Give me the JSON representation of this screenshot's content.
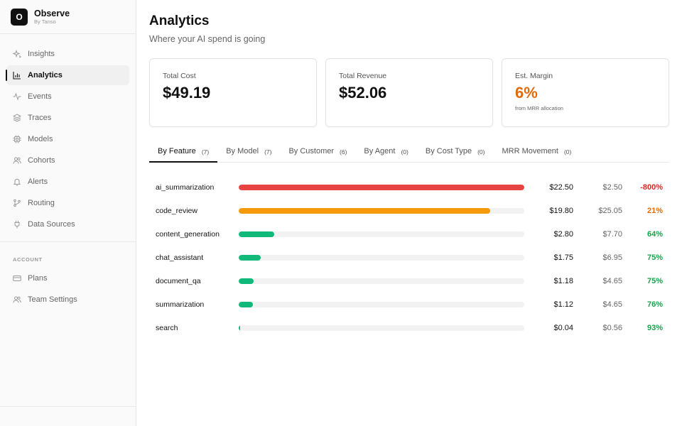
{
  "brand": {
    "logo_letter": "O",
    "name": "Observe",
    "sub": "By Tanso"
  },
  "nav": [
    {
      "label": "Insights",
      "icon": "sparkle-icon",
      "active": false
    },
    {
      "label": "Analytics",
      "icon": "bar-chart-icon",
      "active": true
    },
    {
      "label": "Events",
      "icon": "activity-icon",
      "active": false
    },
    {
      "label": "Traces",
      "icon": "layers-icon",
      "active": false
    },
    {
      "label": "Models",
      "icon": "cpu-icon",
      "active": false
    },
    {
      "label": "Cohorts",
      "icon": "users-icon",
      "active": false
    },
    {
      "label": "Alerts",
      "icon": "bell-icon",
      "active": false
    },
    {
      "label": "Routing",
      "icon": "git-branch-icon",
      "active": false
    },
    {
      "label": "Data Sources",
      "icon": "plug-icon",
      "active": false
    }
  ],
  "account": {
    "label": "ACCOUNT",
    "items": [
      {
        "label": "Plans",
        "icon": "credit-card-icon"
      },
      {
        "label": "Team Settings",
        "icon": "team-icon"
      }
    ]
  },
  "header": {
    "title": "Analytics",
    "subtitle": "Where your AI spend is going"
  },
  "cards": [
    {
      "label": "Total Cost",
      "value": "$49.19",
      "note": ""
    },
    {
      "label": "Total Revenue",
      "value": "$52.06",
      "note": ""
    },
    {
      "label": "Est. Margin",
      "value": "6%",
      "note": "from MRR allocation"
    }
  ],
  "tabs": [
    {
      "label": "By Feature",
      "count": "(7)",
      "active": true
    },
    {
      "label": "By Model",
      "count": "(7)",
      "active": false
    },
    {
      "label": "By Customer",
      "count": "(6)",
      "active": false
    },
    {
      "label": "By Agent",
      "count": "(0)",
      "active": false
    },
    {
      "label": "By Cost Type",
      "count": "(0)",
      "active": false
    },
    {
      "label": "MRR Movement",
      "count": "(0)",
      "active": false
    }
  ],
  "colors": {
    "red": "#e84343",
    "orange": "#f59a0b",
    "green": "#10b97a",
    "margin_negative": "#dc2626",
    "margin_warn": "#e36b0a",
    "margin_positive": "#16a34a"
  },
  "rows": [
    {
      "name": "ai_summarization",
      "cost": "$22.50",
      "revenue": "$2.50",
      "margin": "-800%",
      "share": 1.0,
      "bar_color": "red",
      "margin_color": "margin_negative"
    },
    {
      "name": "code_review",
      "cost": "$19.80",
      "revenue": "$25.05",
      "margin": "21%",
      "share": 0.88,
      "bar_color": "orange",
      "margin_color": "margin_warn"
    },
    {
      "name": "content_generation",
      "cost": "$2.80",
      "revenue": "$7.70",
      "margin": "64%",
      "share": 0.124,
      "bar_color": "green",
      "margin_color": "margin_positive"
    },
    {
      "name": "chat_assistant",
      "cost": "$1.75",
      "revenue": "$6.95",
      "margin": "75%",
      "share": 0.078,
      "bar_color": "green",
      "margin_color": "margin_positive"
    },
    {
      "name": "document_qa",
      "cost": "$1.18",
      "revenue": "$4.65",
      "margin": "75%",
      "share": 0.052,
      "bar_color": "green",
      "margin_color": "margin_positive"
    },
    {
      "name": "summarization",
      "cost": "$1.12",
      "revenue": "$4.65",
      "margin": "76%",
      "share": 0.05,
      "bar_color": "green",
      "margin_color": "margin_positive"
    },
    {
      "name": "search",
      "cost": "$0.04",
      "revenue": "$0.56",
      "margin": "93%",
      "share": 0.002,
      "bar_color": "green",
      "margin_color": "margin_positive"
    }
  ]
}
